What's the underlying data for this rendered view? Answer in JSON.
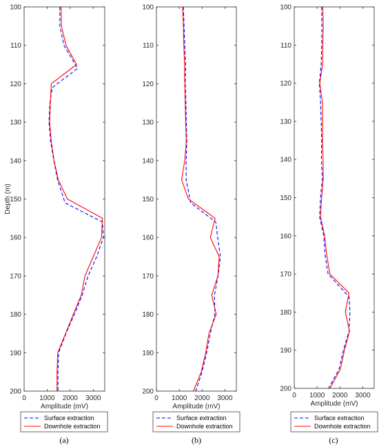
{
  "chart_data": [
    {
      "type": "line",
      "panel_label": "(a)",
      "xlabel": "Amplitude (mV)",
      "ylabel": "Depth (m)",
      "xlim": [
        0,
        3500
      ],
      "ylim": [
        100,
        200
      ],
      "y_reversed": true,
      "x_ticks": [
        0,
        1000,
        2000,
        3000
      ],
      "y_ticks": [
        100,
        110,
        120,
        130,
        140,
        150,
        160,
        170,
        180,
        190,
        200
      ],
      "legend_position": "below",
      "series": [
        {
          "name": "Surface extraction",
          "color": "#0000ff",
          "style": "dashed",
          "points": [
            [
              1550,
              100
            ],
            [
              1550,
              105
            ],
            [
              1730,
              110
            ],
            [
              2320,
              116
            ],
            [
              1220,
              121
            ],
            [
              1120,
              125
            ],
            [
              1080,
              130
            ],
            [
              1150,
              135
            ],
            [
              1290,
              140
            ],
            [
              1450,
              145
            ],
            [
              1780,
              151
            ],
            [
              3400,
              156
            ],
            [
              3440,
              160
            ],
            [
              3150,
              165
            ],
            [
              2780,
              170
            ],
            [
              2520,
              175
            ],
            [
              2180,
              180
            ],
            [
              1820,
              185
            ],
            [
              1500,
              190
            ],
            [
              1470,
              195
            ],
            [
              1470,
              200
            ]
          ]
        },
        {
          "name": "Downhole extraction",
          "color": "#ff0000",
          "style": "solid",
          "points": [
            [
              1600,
              100
            ],
            [
              1620,
              105
            ],
            [
              1820,
              110
            ],
            [
              2280,
              115
            ],
            [
              1180,
              120
            ],
            [
              1140,
              125
            ],
            [
              1110,
              130
            ],
            [
              1180,
              135
            ],
            [
              1300,
              140
            ],
            [
              1480,
              145
            ],
            [
              1880,
              150
            ],
            [
              3400,
              155
            ],
            [
              3360,
              160
            ],
            [
              3000,
              165
            ],
            [
              2640,
              170
            ],
            [
              2480,
              175
            ],
            [
              2140,
              180
            ],
            [
              1800,
              185
            ],
            [
              1460,
              190
            ],
            [
              1430,
              195
            ],
            [
              1430,
              200
            ]
          ]
        }
      ]
    },
    {
      "type": "line",
      "panel_label": "(b)",
      "xlabel": "Amplitude (mV)",
      "ylabel": "",
      "xlim": [
        0,
        3500
      ],
      "ylim": [
        100,
        200
      ],
      "y_reversed": true,
      "x_ticks": [
        0,
        1000,
        2000,
        3000
      ],
      "y_ticks": [
        100,
        110,
        120,
        130,
        140,
        150,
        160,
        170,
        180,
        190,
        200
      ],
      "legend_position": "below",
      "series": [
        {
          "name": "Surface extraction",
          "color": "#0000ff",
          "style": "dashed",
          "points": [
            [
              1180,
              100
            ],
            [
              1210,
              105
            ],
            [
              1240,
              110
            ],
            [
              1280,
              115
            ],
            [
              1260,
              120
            ],
            [
              1290,
              125
            ],
            [
              1310,
              130
            ],
            [
              1330,
              135
            ],
            [
              1300,
              140
            ],
            [
              1300,
              145
            ],
            [
              1500,
              151
            ],
            [
              2600,
              156
            ],
            [
              2680,
              160
            ],
            [
              2800,
              165
            ],
            [
              2700,
              170
            ],
            [
              2540,
              175
            ],
            [
              2560,
              180
            ],
            [
              2360,
              185
            ],
            [
              2200,
              190
            ],
            [
              2000,
              195
            ],
            [
              1720,
              200
            ]
          ]
        },
        {
          "name": "Downhole extraction",
          "color": "#ff0000",
          "style": "solid",
          "points": [
            [
              1150,
              100
            ],
            [
              1180,
              105
            ],
            [
              1200,
              110
            ],
            [
              1230,
              115
            ],
            [
              1240,
              120
            ],
            [
              1260,
              125
            ],
            [
              1280,
              130
            ],
            [
              1310,
              135
            ],
            [
              1240,
              140
            ],
            [
              1100,
              145
            ],
            [
              1400,
              150
            ],
            [
              2570,
              155
            ],
            [
              2360,
              160
            ],
            [
              2750,
              165
            ],
            [
              2690,
              170
            ],
            [
              2420,
              175
            ],
            [
              2620,
              180
            ],
            [
              2300,
              185
            ],
            [
              2160,
              190
            ],
            [
              1960,
              195
            ],
            [
              1620,
              200
            ]
          ]
        }
      ]
    },
    {
      "type": "line",
      "panel_label": "(c)",
      "xlabel": "Amplitude (mV)",
      "ylabel": "",
      "xlim": [
        0,
        3500
      ],
      "ylim": [
        100,
        200
      ],
      "y_reversed": true,
      "x_ticks": [
        0,
        1000,
        2000,
        3000
      ],
      "y_ticks": [
        100,
        110,
        120,
        130,
        140,
        150,
        160,
        170,
        180,
        190,
        200
      ],
      "legend_position": "below",
      "series": [
        {
          "name": "Surface extraction",
          "color": "#0000ff",
          "style": "dashed",
          "points": [
            [
              1200,
              100
            ],
            [
              1210,
              105
            ],
            [
              1200,
              110
            ],
            [
              1180,
              115
            ],
            [
              1100,
              120
            ],
            [
              1150,
              125
            ],
            [
              1180,
              130
            ],
            [
              1200,
              135
            ],
            [
              1190,
              140
            ],
            [
              1230,
              145
            ],
            [
              1150,
              150
            ],
            [
              1110,
              155
            ],
            [
              1290,
              160
            ],
            [
              1350,
              165
            ],
            [
              1480,
              170
            ],
            [
              2400,
              176
            ],
            [
              2440,
              180
            ],
            [
              2400,
              185
            ],
            [
              2150,
              190
            ],
            [
              1960,
              195
            ],
            [
              1500,
              200
            ]
          ]
        },
        {
          "name": "Downhole extraction",
          "color": "#ff0000",
          "style": "solid",
          "points": [
            [
              1250,
              100
            ],
            [
              1270,
              105
            ],
            [
              1250,
              110
            ],
            [
              1240,
              115
            ],
            [
              1120,
              120
            ],
            [
              1230,
              125
            ],
            [
              1240,
              130
            ],
            [
              1240,
              135
            ],
            [
              1260,
              140
            ],
            [
              1270,
              145
            ],
            [
              1200,
              150
            ],
            [
              1150,
              155
            ],
            [
              1330,
              160
            ],
            [
              1420,
              165
            ],
            [
              1560,
              170
            ],
            [
              2400,
              175
            ],
            [
              2240,
              180
            ],
            [
              2420,
              185
            ],
            [
              2200,
              190
            ],
            [
              2020,
              195
            ],
            [
              1560,
              200
            ]
          ]
        }
      ]
    }
  ]
}
